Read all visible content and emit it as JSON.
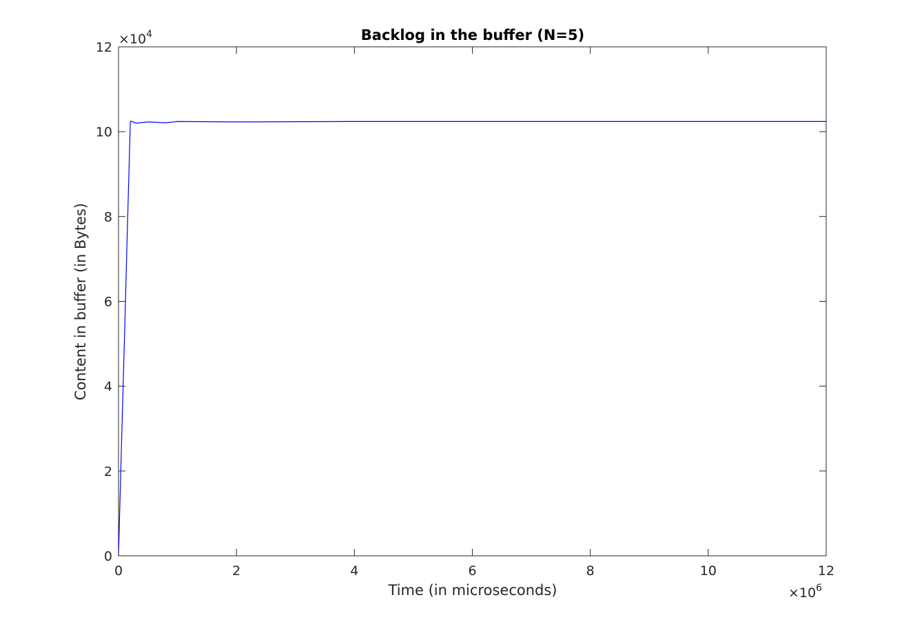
{
  "chart_data": {
    "type": "line",
    "title": "Backlog in the buffer (N=5)",
    "xlabel": "Time (in microseconds)",
    "ylabel": "Content in buffer (in Bytes)",
    "x_multiplier": {
      "base": "×10",
      "exponent": "6"
    },
    "y_multiplier": {
      "base": "×10",
      "exponent": "4"
    },
    "xlim": [
      0,
      12
    ],
    "ylim": [
      0,
      12
    ],
    "xticks": [
      0,
      2,
      4,
      6,
      8,
      10,
      12
    ],
    "yticks": [
      0,
      2,
      4,
      6,
      8,
      10,
      12
    ],
    "xtick_labels": [
      "0",
      "2",
      "4",
      "6",
      "8",
      "10",
      "12"
    ],
    "ytick_labels": [
      "0",
      "2",
      "4",
      "6",
      "8",
      "10",
      "12"
    ],
    "grid": false,
    "box": true,
    "series": [
      {
        "color": "#0000ff",
        "x": [
          0,
          0.05,
          0.1,
          0.15,
          0.2,
          0.21,
          0.3,
          0.5,
          0.8,
          1.0,
          2.0,
          4.0,
          6.0,
          8.0,
          10.0,
          12.0
        ],
        "y": [
          0,
          2.6,
          5.1,
          7.7,
          10.22,
          10.25,
          10.2,
          10.23,
          10.21,
          10.24,
          10.23,
          10.24,
          10.24,
          10.24,
          10.24,
          10.24
        ]
      }
    ]
  }
}
